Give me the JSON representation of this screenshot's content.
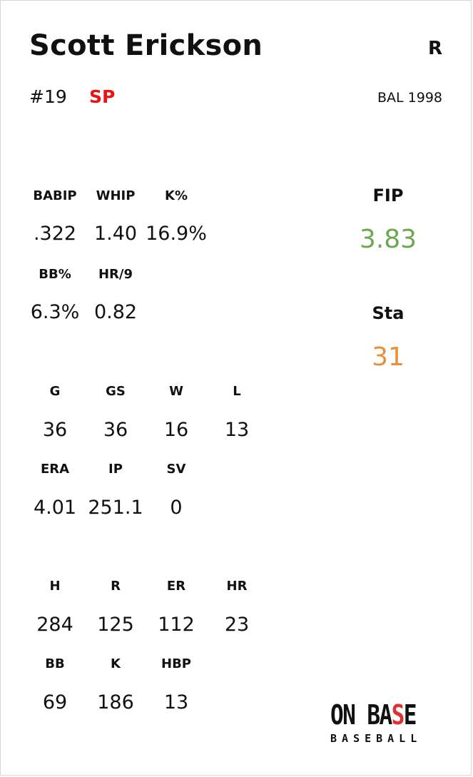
{
  "player": {
    "name": "Scott Erickson",
    "hand": "R",
    "number": "#19",
    "position": "SP",
    "team_year": "BAL 1998"
  },
  "advanced": {
    "labels": [
      "BABIP",
      "WHIP",
      "K%",
      "BB%",
      "HR/9"
    ],
    "values": [
      ".322",
      "1.40",
      "16.9%",
      "6.3%",
      "0.82"
    ]
  },
  "side": {
    "fip_label": "FIP",
    "fip_value": "3.83",
    "sta_label": "Sta",
    "sta_value": "31"
  },
  "basic": {
    "labels": [
      "G",
      "GS",
      "W",
      "L",
      "ERA",
      "IP",
      "SV"
    ],
    "values": [
      "36",
      "36",
      "16",
      "13",
      "4.01",
      "251.1",
      "0"
    ]
  },
  "counting": {
    "labels": [
      "H",
      "R",
      "ER",
      "HR",
      "BB",
      "K",
      "HBP"
    ],
    "values": [
      "284",
      "125",
      "112",
      "23",
      "69",
      "186",
      "13"
    ]
  },
  "logo": {
    "main_part1": "ON BA",
    "main_part2": "S",
    "main_part3": "E",
    "sub": "BASEBALL"
  },
  "colors": {
    "position": "#ee1111",
    "fip": "#6aa84f",
    "stamina": "#e69138",
    "logo_accent": "#e03030"
  }
}
